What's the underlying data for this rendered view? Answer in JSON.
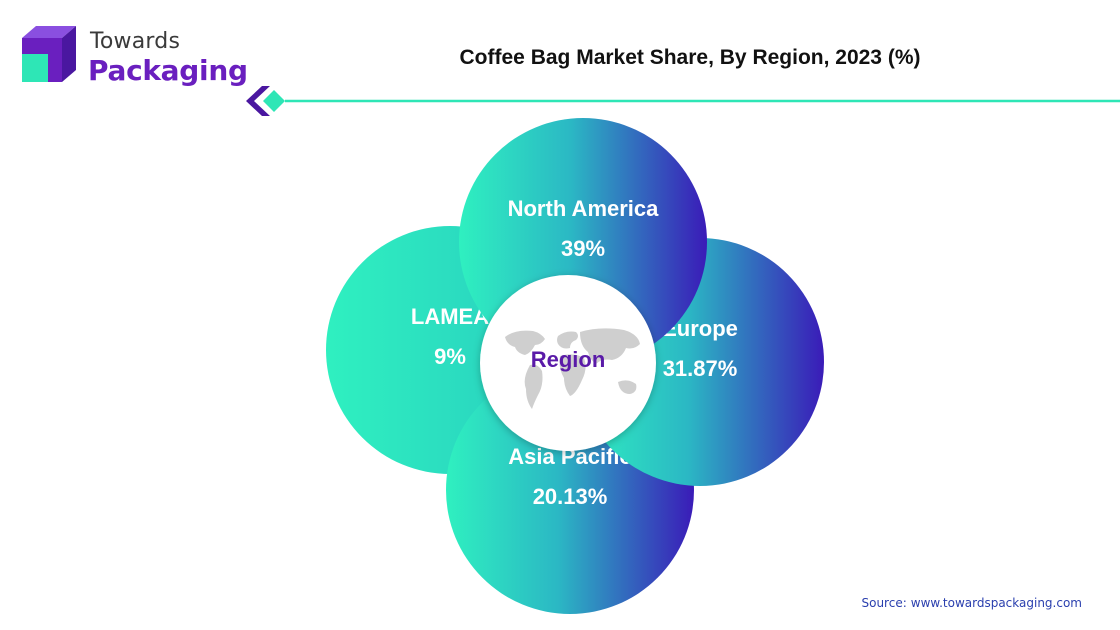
{
  "logo": {
    "line1": "Towards",
    "line2": "Packaging",
    "colors": {
      "purple": "#6a1fbf",
      "teal": "#2ee6b6"
    }
  },
  "title": "Coffee Bag Market Share, By Region, 2023 (%)",
  "center_label": "Region",
  "source": {
    "label": "Source:",
    "url": "www.towardspackaging.com"
  },
  "colors": {
    "teal": "#2ff0c0",
    "indigo": "#3a1bb8",
    "center_text": "#5a1aa8",
    "accent_line": "#2ee6b6"
  },
  "chart_data": {
    "type": "pie",
    "title": "Coffee Bag Market Share, By Region, 2023 (%)",
    "unit": "%",
    "categories": [
      "North America",
      "Europe",
      "Asia Pacific",
      "LAMEA"
    ],
    "values": [
      39,
      31.87,
      20.13,
      9
    ],
    "value_labels": [
      "39%",
      "31.87%",
      "20.13%",
      "9%"
    ]
  }
}
